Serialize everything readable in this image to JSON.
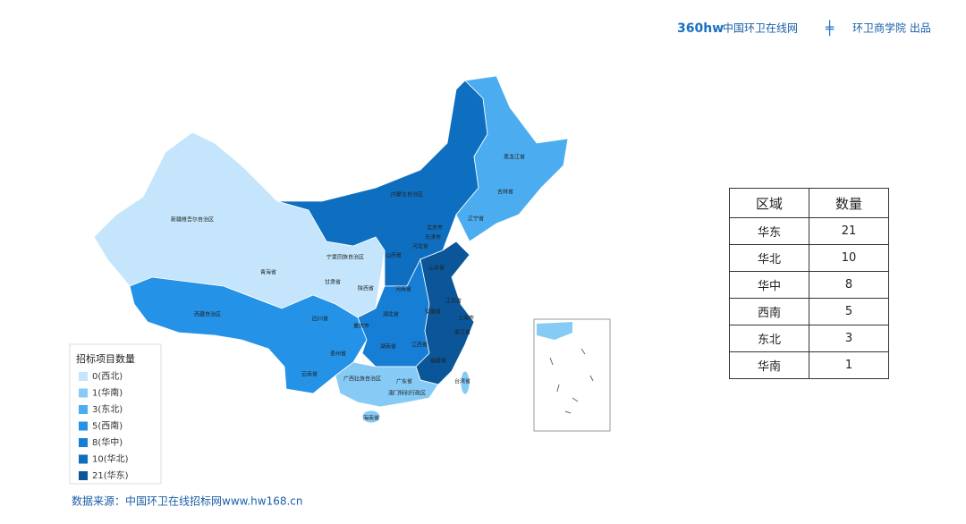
{
  "header": {
    "logo": "360hw",
    "brand": "中国环卫在线网",
    "brand2": "环卫商学院 出品"
  },
  "map": {
    "labels": [
      "新疆维吾尔自治区",
      "青海省",
      "西藏自治区",
      "内蒙古自治区",
      "黑龙江省",
      "吉林省",
      "辽宁省",
      "北京市",
      "天津市",
      "河北省",
      "山西省",
      "宁夏回族自治区",
      "甘肃省",
      "陕西省",
      "山东省",
      "河南省",
      "江苏省",
      "安徽省",
      "上海市",
      "湖北省",
      "四川省",
      "重庆市",
      "浙江省",
      "湖南省",
      "江西省",
      "贵州省",
      "福建省",
      "云南省",
      "广西壮族自治区",
      "广东省",
      "澳门特别行政区",
      "台湾省",
      "海南省"
    ]
  },
  "legend": {
    "title": "招标项目数量",
    "items": [
      {
        "label": "0(西北)",
        "color": "#c4e5fb"
      },
      {
        "label": "1(华南)",
        "color": "#86cbf6"
      },
      {
        "label": "3(东北)",
        "color": "#4badf0"
      },
      {
        "label": "5(西南)",
        "color": "#2492e6"
      },
      {
        "label": "8(华中)",
        "color": "#167ed5"
      },
      {
        "label": "10(华北)",
        "color": "#0e6fc0"
      },
      {
        "label": "21(华东)",
        "color": "#0a5699"
      }
    ]
  },
  "table": {
    "header": [
      "区域",
      "数量"
    ],
    "rows": [
      [
        "华东",
        21
      ],
      [
        "华北",
        10
      ],
      [
        "华中",
        8
      ],
      [
        "西南",
        5
      ],
      [
        "东北",
        3
      ],
      [
        "华南",
        1
      ]
    ]
  },
  "source": "数据来源：中国环卫在线招标网www.hw168.cn"
}
